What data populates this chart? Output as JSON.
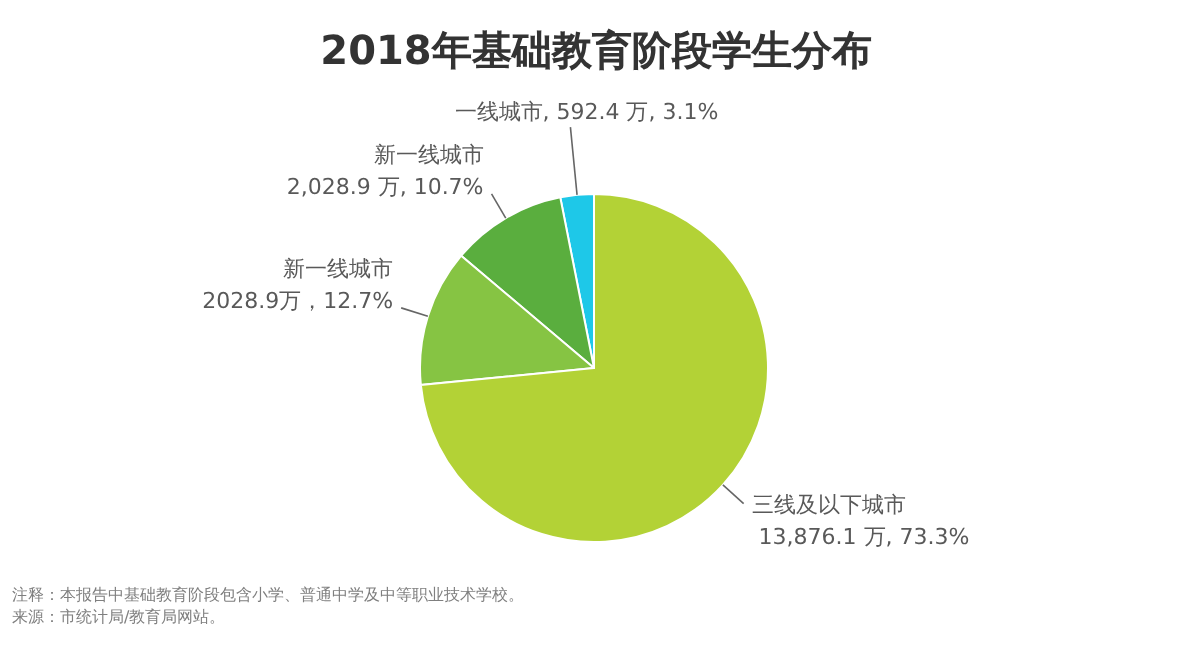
{
  "chart_data": {
    "type": "pie",
    "title": "2018年基础教育阶段学生分布",
    "categories": [
      "一线城市",
      "新一线城市",
      "新一线城市",
      "三线及以下城市"
    ],
    "values": [
      3.1,
      10.7,
      12.7,
      73.3
    ],
    "value_labels": [
      "592.4 万, 3.1%",
      "2,028.9 万, 10.7%",
      "2028.9万，12.7%",
      "13,876.1 万, 73.3%"
    ],
    "colors": [
      "#1ec8e8",
      "#5aae3e",
      "#86c443",
      "#b3d236"
    ],
    "legend": false,
    "annotations": [
      "注释：本报告中基础教育阶段包含小学、普通中学及中等职业技术学校。",
      "来源：市统计局/教育局网站。"
    ]
  }
}
